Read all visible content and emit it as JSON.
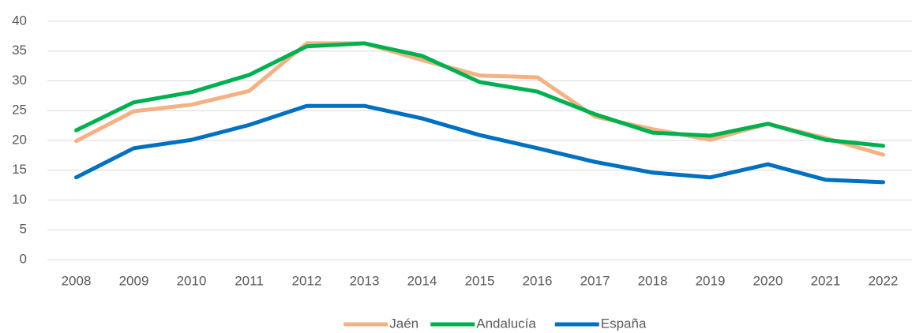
{
  "chart_data": {
    "type": "line",
    "categories": [
      "2008",
      "2009",
      "2010",
      "2011",
      "2012",
      "2013",
      "2014",
      "2015",
      "2016",
      "2017",
      "2018",
      "2019",
      "2020",
      "2021",
      "2022"
    ],
    "series": [
      {
        "name": "Jaén",
        "color": "#f4b183",
        "values": [
          19.9,
          24.9,
          26.0,
          28.3,
          36.3,
          36.3,
          33.5,
          30.9,
          30.6,
          24.0,
          21.9,
          20.1,
          22.8,
          20.4,
          17.6
        ]
      },
      {
        "name": "Andalucía",
        "color": "#00b050",
        "values": [
          21.7,
          26.4,
          28.1,
          31.0,
          35.8,
          36.3,
          34.2,
          29.8,
          28.2,
          24.4,
          21.3,
          20.8,
          22.8,
          20.1,
          19.1
        ]
      },
      {
        "name": "España",
        "color": "#0070c0",
        "values": [
          13.8,
          18.7,
          20.1,
          22.6,
          25.8,
          25.8,
          23.7,
          20.9,
          18.7,
          16.4,
          14.6,
          13.8,
          16.0,
          13.4,
          13.0
        ]
      }
    ],
    "ylim": [
      0,
      40
    ],
    "yticks": [
      0,
      5,
      10,
      15,
      20,
      25,
      30,
      35,
      40
    ],
    "grid": true,
    "legend": "bottom"
  }
}
